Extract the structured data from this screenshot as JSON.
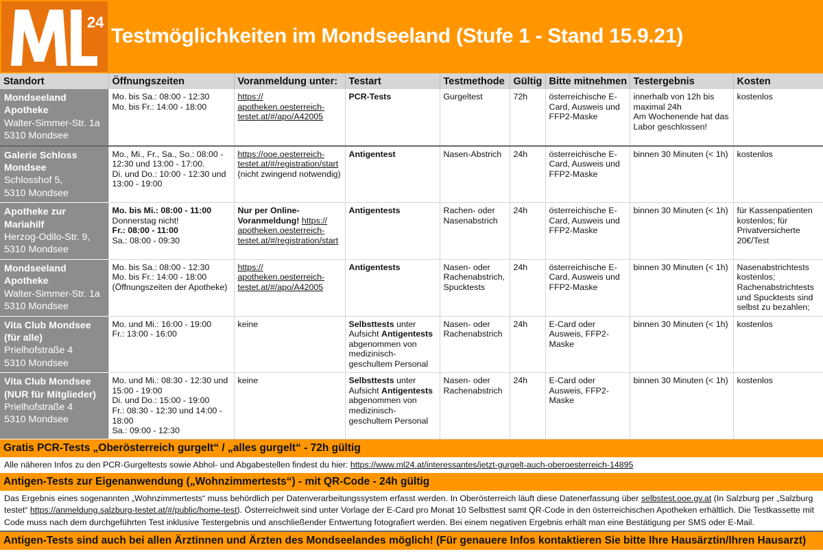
{
  "header": {
    "logo_text": "ML24",
    "title": "Testmöglichkeiten im Mondseeland (Stufe 1 - Stand 15.9.21)"
  },
  "colors": {
    "orange": "#ff9600",
    "logo_orange": "#e8720c",
    "location_gray": "#8d8d8d",
    "header_gray": "#d6d6d6"
  },
  "table": {
    "columns": [
      "Standort",
      "Öffnungszeiten",
      "Voranmeldung unter:",
      "Testart",
      "Testmethode",
      "Gültig",
      "Bitte mitnehmen",
      "Testergebnis",
      "Kosten"
    ],
    "rows": [
      {
        "name": "Mondseeland Apotheke",
        "address": [
          "Walter-Simmer-Str. 1a",
          "5310 Mondsee"
        ],
        "hours": [
          "Mo. bis Sa.: 08:00 - 12:30",
          "Mo. bis Fr.: 14:00 - 18:00"
        ],
        "registration": [
          [
            [
              "https:// apotheken.oesterreich-testet.at/#/apo/A42005",
              "u"
            ]
          ]
        ],
        "type": [
          [
            [
              "PCR-Tests",
              "b"
            ]
          ]
        ],
        "method": [
          "Gurgeltest"
        ],
        "valid": [
          "72h"
        ],
        "bring": [
          "österreichische E-Card, Ausweis und FFP2-Maske"
        ],
        "result": [
          "innerhalb von 12h bis maximal 24h",
          "Am Wochenende hat das Labor geschlossen!"
        ],
        "cost": [
          "kostenlos"
        ]
      },
      {
        "name": "Galerie Schloss Mondsee",
        "address": [
          "Schlosshof 5,",
          "5310 Mondsee"
        ],
        "hours": [
          "Mo., Mi., Fr., Sa., So.: 08:00 - 12:30 und 13:00 - 17:00.",
          "Di. und Do.: 10:00 - 12:30 und 13:00 - 19:00"
        ],
        "registration": [
          [
            [
              "https://ooe.oesterreich-testet.at/#/registration/start",
              "u"
            ]
          ],
          "(nicht zwingend notwendig)"
        ],
        "type": [
          [
            [
              "Antigentest",
              "b"
            ]
          ]
        ],
        "method": [
          "Nasen-Abstrich"
        ],
        "valid": [
          "24h"
        ],
        "bring": [
          "österreichische E-Card, Ausweis und FFP2-Maske"
        ],
        "result": [
          "binnen 30 Minuten (< 1h)"
        ],
        "cost": [
          "kostenlos"
        ]
      },
      {
        "name": "Apotheke zur Mariahilf",
        "address": [
          "Herzog-Odilo-Str. 9,",
          "5310 Mondsee"
        ],
        "hours": [
          [
            [
              "Mo. bis Mi.: 08:00 - 11:00",
              "b"
            ]
          ],
          "Donnerstag nicht!",
          [
            [
              "Fr.: 08:00 - 11:00",
              "b"
            ]
          ],
          "Sa.: 08:00 - 09:30"
        ],
        "registration": [
          [
            [
              "Nur per Online-Voranmeldung!",
              "b"
            ],
            [
              " ",
              ""
            ],
            [
              "https:// apotheken.oesterreich-testet.at/#/registration/start",
              "u"
            ]
          ]
        ],
        "type": [
          [
            [
              "Antigentests",
              "b"
            ]
          ]
        ],
        "method": [
          "Rachen- oder Nasenabstrich"
        ],
        "valid": [
          "24h"
        ],
        "bring": [
          "österreichische E-Card, Ausweis und FFP2-Maske"
        ],
        "result": [
          "binnen 30 Minuten (< 1h)"
        ],
        "cost": [
          "für Kassenpatienten kostenlos; für Privatversicherte 20€/Test"
        ]
      },
      {
        "name": "Mondseeland Apotheke",
        "address": [
          "Walter-Simmer-Str. 1a",
          "5310 Mondsee"
        ],
        "hours": [
          "Mo. bis Sa.: 08:00 - 12:30",
          "Mo. bis Fr.: 14:00 - 18:00",
          "(Öffnungszeiten der Apotheke)"
        ],
        "registration": [
          [
            [
              "https:// apotheken.oesterreich-testet.at/#/apo/A42005",
              "u"
            ]
          ]
        ],
        "type": [
          [
            [
              "Antigentests",
              "b"
            ]
          ]
        ],
        "method": [
          "Nasen- oder Rachenabstrich, Spucktests"
        ],
        "valid": [
          "24h"
        ],
        "bring": [
          "österreichische E-Card, Ausweis und FFP2-Maske"
        ],
        "result": [
          "binnen 30 Minuten (< 1h)"
        ],
        "cost": [
          "Nasenabstrichtests kostenlos; Rachenabstrichtests und Spucktests sind selbst zu bezahlen;"
        ]
      },
      {
        "name": "Vita Club Mondsee (für alle)",
        "address": [
          "Prielhofstraße 4",
          "5310 Mondsee"
        ],
        "hours": [
          "Mo. und Mi.: 16:00 - 19:00",
          "Fr.: 13:00 - 16:00"
        ],
        "registration": [
          "keine"
        ],
        "type": [
          [
            [
              "Selbsttests",
              "b"
            ],
            [
              " unter Aufsicht ",
              ""
            ],
            [
              "Antigentests",
              "b"
            ],
            [
              " abgenommen von medizinisch-geschultem Personal",
              ""
            ]
          ]
        ],
        "method": [
          "Nasen- oder Rachenabstrich"
        ],
        "valid": [
          "24h"
        ],
        "bring": [
          "E-Card oder Ausweis, FFP2-Maske"
        ],
        "result": [
          "binnen 30 Minuten (< 1h)"
        ],
        "cost": [
          "kostenlos"
        ]
      },
      {
        "name": "Vita Club Mondsee (NUR für Mitglieder)",
        "address": [
          "Prielhofstraße 4",
          "5310 Mondsee"
        ],
        "hours": [
          "Mo. und Mi.: 08:30 - 12:30 und 15:00 - 19:00",
          "Di. und Do.: 15:00 - 19:00",
          "Fr.: 08:30 - 12:30 und 14:00 - 18:00",
          "Sa.: 09:00 - 12:30"
        ],
        "registration": [
          "keine"
        ],
        "type": [
          [
            [
              "Selbsttests",
              "b"
            ],
            [
              " unter Aufsicht ",
              ""
            ],
            [
              "Antigentests",
              "b"
            ],
            [
              " abgenommen von medizinisch-geschultem Personal",
              ""
            ]
          ]
        ],
        "method": [
          "Nasen- oder Rachenabstrich"
        ],
        "valid": [
          "24h"
        ],
        "bring": [
          "E-Card oder Ausweis, FFP2-Maske"
        ],
        "result": [
          "binnen 30 Minuten (< 1h)"
        ],
        "cost": [
          "kostenlos"
        ]
      }
    ]
  },
  "pcr_section": {
    "heading": "Gratis PCR-Tests „Oberösterreich gurgelt“ / „alles gurgelt“ - 72h gültig",
    "text": "Alle näheren Infos zu den PCR-Gurgeltests sowie Abhol- und Abgabestellen findest du hier: ",
    "link": "https://www.ml24.at/interessantes/jetzt-gurgelt-auch-oberoesterreich-14895"
  },
  "antigen_section": {
    "heading": "Antigen-Tests zur Eigenanwendung („Wohnzimmertests“) - mit QR-Code - 24h gültig",
    "text1": "Das Ergebnis eines sogenannten „Wohnzimmertests“ muss behördlich per Datenverarbeitungssystem erfasst werden. In Oberösterreich läuft diese Datenerfassung über ",
    "link1": "selbstest.ooe.gv.at",
    "text2": " (In Salzburg per „Salzburg testet“ ",
    "link2": "https://anmeldung.salzburg-testet.at/#/public/home-test",
    "text3": "). Österreichweit sind unter Vorlage der E-Card pro Monat 10 Selbsttest samt QR-Code in den österreichischen Apotheken erhältlich. Die Testkassette mit Code muss nach dem durchgeführten Test inklusive Testergebnis und anschließender Entwertung fotografiert werden. Bei einem negativen Ergebnis erhält man eine Bestätigung per SMS oder E-Mail."
  },
  "footer_note": "Antigen-Tests sind auch bei allen Ärztinnen und Ärzten des Mondseelandes möglich! (Für genauere Infos kontaktieren Sie bitte Ihre Hausärztin/Ihren Hausarzt)"
}
